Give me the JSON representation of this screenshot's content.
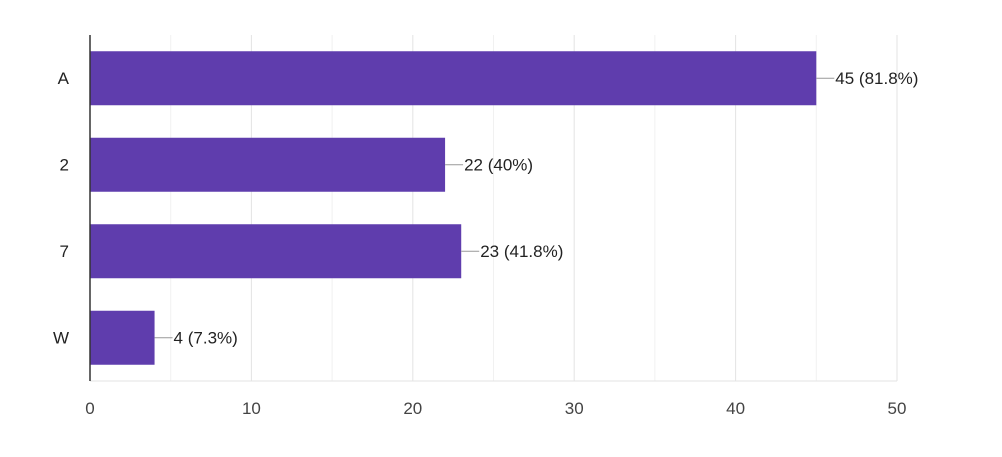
{
  "chart_data": {
    "type": "bar",
    "orientation": "horizontal",
    "categories": [
      "A",
      "2",
      "7",
      "W"
    ],
    "values": [
      45,
      22,
      23,
      4
    ],
    "data_labels": [
      "45 (81.8%)",
      "22 (40%)",
      "23 (41.8%)",
      "4 (7.3%)"
    ],
    "xlim": [
      0,
      50
    ],
    "x_ticks": [
      0,
      10,
      20,
      30,
      40,
      50
    ],
    "x_tick_labels": [
      "0",
      "10",
      "20",
      "30",
      "40",
      "50"
    ],
    "grid": true,
    "legend": "none",
    "title": "",
    "xlabel": "",
    "ylabel": ""
  },
  "colors": {
    "bar": "#5f3dad",
    "grid_major": "#e3e3e3",
    "grid_minor": "#f1f1f1",
    "axis": "#333333",
    "text": "#222222",
    "tick_text": "#444444",
    "leader": "#999999"
  }
}
